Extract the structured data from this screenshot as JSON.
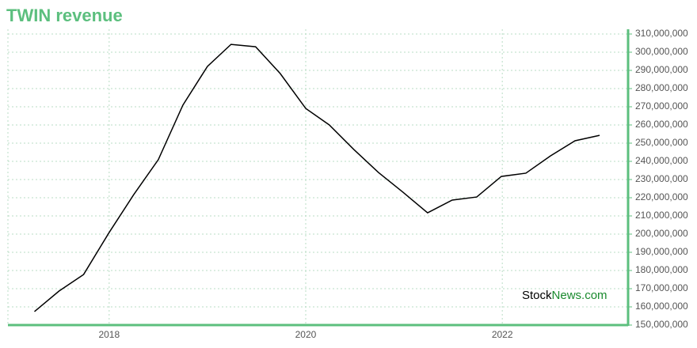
{
  "chart_data": {
    "type": "line",
    "title": "TWIN revenue",
    "watermark": {
      "prefix": "Stock",
      "suffix": "News.com"
    },
    "x": [
      2017.24,
      2017.49,
      2017.74,
      2018.0,
      2018.25,
      2018.5,
      2018.75,
      2019.0,
      2019.24,
      2019.49,
      2019.74,
      2020.0,
      2020.24,
      2020.49,
      2020.74,
      2020.99,
      2021.24,
      2021.49,
      2021.74,
      2021.99,
      2022.24,
      2022.49,
      2022.74,
      2022.99
    ],
    "series": [
      {
        "name": "revenue",
        "color": "#000000",
        "values": [
          157400000,
          168700000,
          177800000,
          200900000,
          221700000,
          240900000,
          270900000,
          292200000,
          304300000,
          303000000,
          288300000,
          269100000,
          260000000,
          246500000,
          233900000,
          223000000,
          211700000,
          218700000,
          220400000,
          231700000,
          233500000,
          243000000,
          251300000,
          254300000
        ]
      }
    ],
    "xlim": [
      2016.97,
      2023.28
    ],
    "xticks": [
      2018,
      2020,
      2022
    ],
    "ylim": [
      150000000,
      310000000
    ],
    "yticks": [
      {
        "value": 150000000,
        "label": "150,000,000"
      },
      {
        "value": 160000000,
        "label": "160,000,000"
      },
      {
        "value": 170000000,
        "label": "170,000,000"
      },
      {
        "value": 180000000,
        "label": "180,000,000"
      },
      {
        "value": 190000000,
        "label": "190,000,000"
      },
      {
        "value": 200000000,
        "label": "200,000,000"
      },
      {
        "value": 210000000,
        "label": "210,000,000"
      },
      {
        "value": 220000000,
        "label": "220,000,000"
      },
      {
        "value": 230000000,
        "label": "230,000,000"
      },
      {
        "value": 240000000,
        "label": "240,000,000"
      },
      {
        "value": 250000000,
        "label": "250,000,000"
      },
      {
        "value": 260000000,
        "label": "260,000,000"
      },
      {
        "value": 270000000,
        "label": "270,000,000"
      },
      {
        "value": 280000000,
        "label": "280,000,000"
      },
      {
        "value": 290000000,
        "label": "290,000,000"
      },
      {
        "value": 300000000,
        "label": "300,000,000"
      },
      {
        "value": 310000000,
        "label": "310,000,000"
      }
    ],
    "grid": true,
    "axis_color": "#5cbf7e"
  }
}
